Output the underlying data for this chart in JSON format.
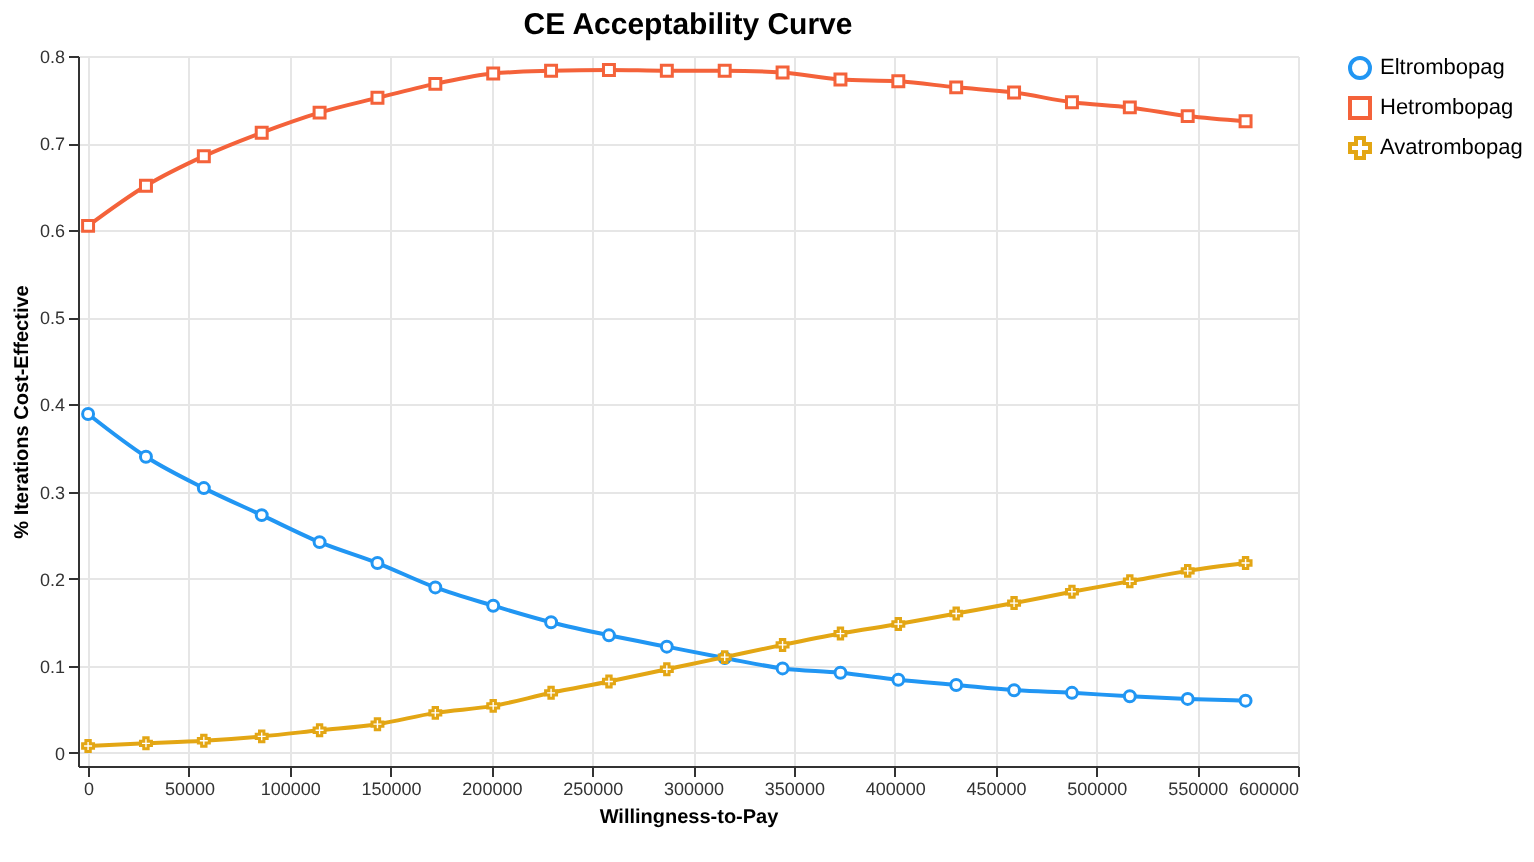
{
  "chart_data": {
    "type": "line",
    "title": "CE Acceptability Curve",
    "xlabel": "Willingness-to-Pay",
    "ylabel": "% Iterations Cost-Effective",
    "x": [
      0,
      28700,
      57400,
      86100,
      114800,
      143500,
      172200,
      200900,
      229600,
      258300,
      287000,
      315700,
      344400,
      373100,
      401800,
      430500,
      459200,
      487900,
      516600,
      545300,
      574000
    ],
    "series": [
      {
        "name": "Eltrombopag",
        "color": "#2196f3",
        "marker": "circle",
        "values": [
          0.389,
          0.34,
          0.304,
          0.273,
          0.242,
          0.218,
          0.19,
          0.169,
          0.15,
          0.135,
          0.122,
          0.109,
          0.097,
          0.092,
          0.084,
          0.078,
          0.072,
          0.069,
          0.065,
          0.062,
          0.06
        ]
      },
      {
        "name": "Hetrombopag",
        "color": "#f4623a",
        "marker": "square",
        "values": [
          0.605,
          0.651,
          0.685,
          0.712,
          0.735,
          0.752,
          0.768,
          0.78,
          0.783,
          0.784,
          0.783,
          0.783,
          0.781,
          0.773,
          0.771,
          0.764,
          0.758,
          0.747,
          0.741,
          0.731,
          0.725
        ]
      },
      {
        "name": "Avatrombopag",
        "color": "#e3a614",
        "marker": "cross",
        "values": [
          0.008,
          0.011,
          0.014,
          0.019,
          0.026,
          0.033,
          0.046,
          0.054,
          0.069,
          0.082,
          0.096,
          0.11,
          0.124,
          0.137,
          0.148,
          0.16,
          0.172,
          0.185,
          0.197,
          0.209,
          0.218
        ]
      }
    ],
    "xlim": [
      -5000,
      600000
    ],
    "xticks": [
      0,
      50000,
      100000,
      150000,
      200000,
      250000,
      300000,
      350000,
      400000,
      450000,
      500000,
      550000,
      600000
    ],
    "ylim": [
      -0.015,
      0.8
    ],
    "yticks": [
      0,
      0.1,
      0.2,
      0.3,
      0.4,
      0.5,
      0.6,
      0.7,
      0.8
    ],
    "grid": true,
    "legend": "top right",
    "line_style": "solid"
  }
}
